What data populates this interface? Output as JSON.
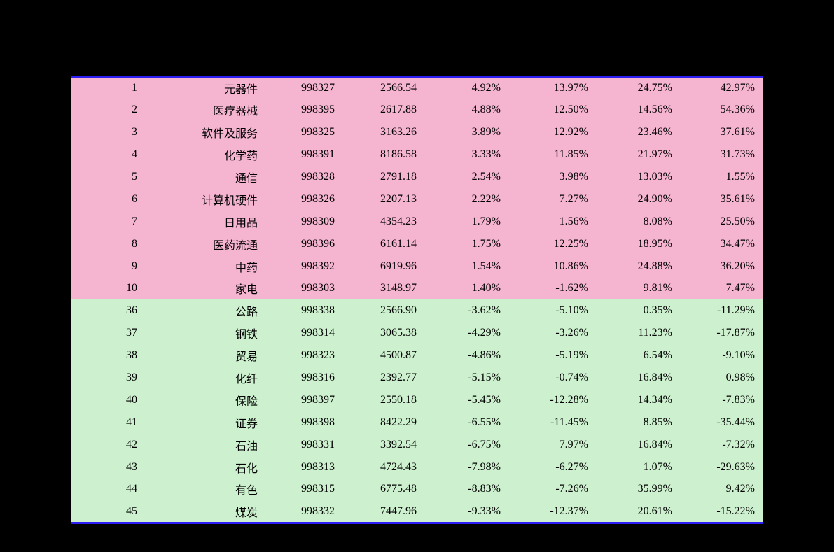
{
  "table": {
    "colors": {
      "top_bg": "#f5b4d0",
      "bottom_bg": "#cdf1cf",
      "border": "#2e1ef6",
      "text": "#000000",
      "page_bg": "#000000"
    },
    "columns": [
      {
        "key": "rank",
        "class": "col-rank",
        "align": "right"
      },
      {
        "key": "name",
        "class": "col-name",
        "align": "right"
      },
      {
        "key": "code",
        "class": "col-code",
        "align": "right"
      },
      {
        "key": "val1",
        "class": "col-val1",
        "align": "right"
      },
      {
        "key": "val2",
        "class": "col-val2",
        "align": "right"
      },
      {
        "key": "val3",
        "class": "col-val3",
        "align": "right"
      },
      {
        "key": "val4",
        "class": "col-val4",
        "align": "right"
      },
      {
        "key": "val5",
        "class": "col-val5",
        "align": "right"
      }
    ],
    "top_rows": [
      {
        "rank": "1",
        "name": "元器件",
        "code": "998327",
        "val1": "2566.54",
        "val2": "4.92%",
        "val3": "13.97%",
        "val4": "24.75%",
        "val5": "42.97%"
      },
      {
        "rank": "2",
        "name": "医疗器械",
        "code": "998395",
        "val1": "2617.88",
        "val2": "4.88%",
        "val3": "12.50%",
        "val4": "14.56%",
        "val5": "54.36%"
      },
      {
        "rank": "3",
        "name": "软件及服务",
        "code": "998325",
        "val1": "3163.26",
        "val2": "3.89%",
        "val3": "12.92%",
        "val4": "23.46%",
        "val5": "37.61%"
      },
      {
        "rank": "4",
        "name": "化学药",
        "code": "998391",
        "val1": "8186.58",
        "val2": "3.33%",
        "val3": "11.85%",
        "val4": "21.97%",
        "val5": "31.73%"
      },
      {
        "rank": "5",
        "name": "通信",
        "code": "998328",
        "val1": "2791.18",
        "val2": "2.54%",
        "val3": "3.98%",
        "val4": "13.03%",
        "val5": "1.55%"
      },
      {
        "rank": "6",
        "name": "计算机硬件",
        "code": "998326",
        "val1": "2207.13",
        "val2": "2.22%",
        "val3": "7.27%",
        "val4": "24.90%",
        "val5": "35.61%"
      },
      {
        "rank": "7",
        "name": "日用品",
        "code": "998309",
        "val1": "4354.23",
        "val2": "1.79%",
        "val3": "1.56%",
        "val4": "8.08%",
        "val5": "25.50%"
      },
      {
        "rank": "8",
        "name": "医药流通",
        "code": "998396",
        "val1": "6161.14",
        "val2": "1.75%",
        "val3": "12.25%",
        "val4": "18.95%",
        "val5": "34.47%"
      },
      {
        "rank": "9",
        "name": "中药",
        "code": "998392",
        "val1": "6919.96",
        "val2": "1.54%",
        "val3": "10.86%",
        "val4": "24.88%",
        "val5": "36.20%"
      },
      {
        "rank": "10",
        "name": "家电",
        "code": "998303",
        "val1": "3148.97",
        "val2": "1.40%",
        "val3": "-1.62%",
        "val4": "9.81%",
        "val5": "7.47%"
      }
    ],
    "bottom_rows": [
      {
        "rank": "36",
        "name": "公路",
        "code": "998338",
        "val1": "2566.90",
        "val2": "-3.62%",
        "val3": "-5.10%",
        "val4": "0.35%",
        "val5": "-11.29%"
      },
      {
        "rank": "37",
        "name": "钢铁",
        "code": "998314",
        "val1": "3065.38",
        "val2": "-4.29%",
        "val3": "-3.26%",
        "val4": "11.23%",
        "val5": "-17.87%"
      },
      {
        "rank": "38",
        "name": "贸易",
        "code": "998323",
        "val1": "4500.87",
        "val2": "-4.86%",
        "val3": "-5.19%",
        "val4": "6.54%",
        "val5": "-9.10%"
      },
      {
        "rank": "39",
        "name": "化纤",
        "code": "998316",
        "val1": "2392.77",
        "val2": "-5.15%",
        "val3": "-0.74%",
        "val4": "16.84%",
        "val5": "0.98%"
      },
      {
        "rank": "40",
        "name": "保险",
        "code": "998397",
        "val1": "2550.18",
        "val2": "-5.45%",
        "val3": "-12.28%",
        "val4": "14.34%",
        "val5": "-7.83%"
      },
      {
        "rank": "41",
        "name": "证券",
        "code": "998398",
        "val1": "8422.29",
        "val2": "-6.55%",
        "val3": "-11.45%",
        "val4": "8.85%",
        "val5": "-35.44%"
      },
      {
        "rank": "42",
        "name": "石油",
        "code": "998331",
        "val1": "3392.54",
        "val2": "-6.75%",
        "val3": "7.97%",
        "val4": "16.84%",
        "val5": "-7.32%"
      },
      {
        "rank": "43",
        "name": "石化",
        "code": "998313",
        "val1": "4724.43",
        "val2": "-7.98%",
        "val3": "-6.27%",
        "val4": "1.07%",
        "val5": "-29.63%"
      },
      {
        "rank": "44",
        "name": "有色",
        "code": "998315",
        "val1": "6775.48",
        "val2": "-8.83%",
        "val3": "-7.26%",
        "val4": "35.99%",
        "val5": "9.42%"
      },
      {
        "rank": "45",
        "name": "煤炭",
        "code": "998332",
        "val1": "7447.96",
        "val2": "-9.33%",
        "val3": "-12.37%",
        "val4": "20.61%",
        "val5": "-15.22%"
      }
    ]
  }
}
